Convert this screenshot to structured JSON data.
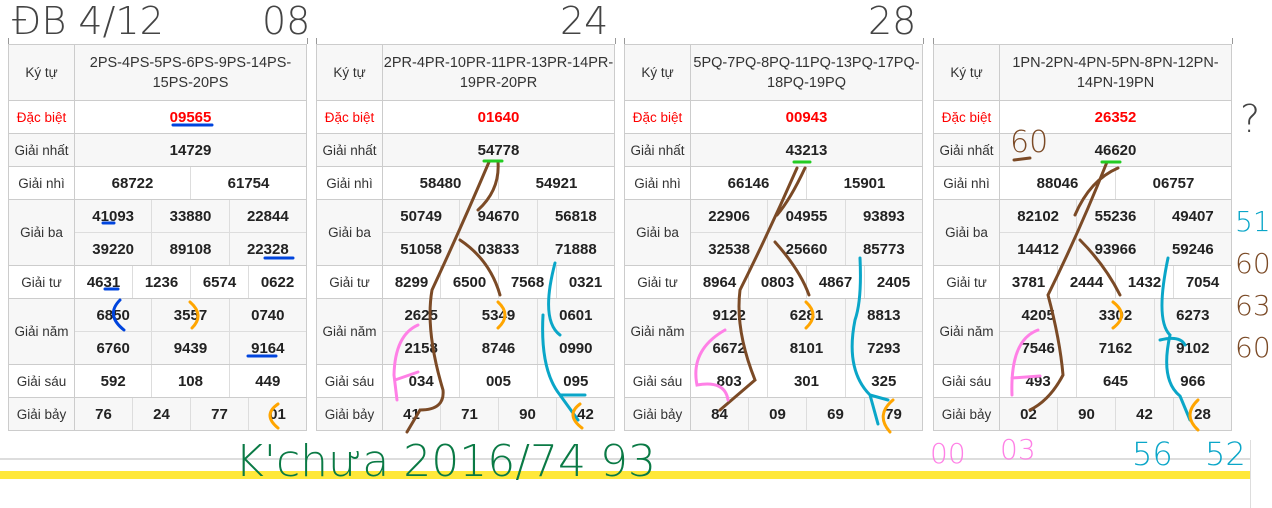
{
  "labels": {
    "ky_tu": "Ký tự",
    "dac_biet": "Đặc biệt",
    "nhat": "Giải nhất",
    "nhi": "Giải nhì",
    "ba": "Giải ba",
    "tu": "Giải tư",
    "nam": "Giải năm",
    "sau": "Giải sáu",
    "bay": "Giải bảy"
  },
  "tables": [
    {
      "ky_tu": "2PS-4PS-5PS-6PS-9PS-14PS-15PS-20PS",
      "dac_biet": "09565",
      "nhat": "14729",
      "nhi": [
        "68722",
        "61754"
      ],
      "ba": [
        "41093",
        "33880",
        "22844",
        "39220",
        "89108",
        "22328"
      ],
      "tu": [
        "4631",
        "1236",
        "6574",
        "0622"
      ],
      "nam": [
        "6850",
        "3557",
        "0740",
        "6760",
        "9439",
        "9164"
      ],
      "sau": [
        "592",
        "108",
        "449"
      ],
      "bay": [
        "76",
        "24",
        "77",
        "01"
      ]
    },
    {
      "ky_tu": "2PR-4PR-10PR-11PR-13PR-14PR-19PR-20PR",
      "dac_biet": "01640",
      "nhat": "54778",
      "nhi": [
        "58480",
        "54921"
      ],
      "ba": [
        "50749",
        "94670",
        "56818",
        "51058",
        "03833",
        "71888"
      ],
      "tu": [
        "8299",
        "6500",
        "7568",
        "0321"
      ],
      "nam": [
        "2625",
        "5349",
        "0601",
        "2158",
        "8746",
        "0990"
      ],
      "sau": [
        "034",
        "005",
        "095"
      ],
      "bay": [
        "41",
        "71",
        "90",
        "42"
      ]
    },
    {
      "ky_tu": "5PQ-7PQ-8PQ-11PQ-13PQ-17PQ-18PQ-19PQ",
      "dac_biet": "00943",
      "nhat": "43213",
      "nhi": [
        "66146",
        "15901"
      ],
      "ba": [
        "22906",
        "04955",
        "93893",
        "32538",
        "25660",
        "85773"
      ],
      "tu": [
        "8964",
        "0803",
        "4867",
        "2405"
      ],
      "nam": [
        "9122",
        "6281",
        "8813",
        "6672",
        "8101",
        "7293"
      ],
      "sau": [
        "803",
        "301",
        "325"
      ],
      "bay": [
        "84",
        "09",
        "69",
        "79"
      ]
    },
    {
      "ky_tu": "1PN-2PN-4PN-5PN-8PN-12PN-14PN-19PN",
      "dac_biet": "26352",
      "nhat": "46620",
      "nhi": [
        "88046",
        "06757"
      ],
      "ba": [
        "82102",
        "55236",
        "49407",
        "14412",
        "93966",
        "59246"
      ],
      "tu": [
        "3781",
        "2444",
        "1432",
        "7054"
      ],
      "nam": [
        "4205",
        "3302",
        "6273",
        "7546",
        "7162",
        "9102"
      ],
      "sau": [
        "493",
        "645",
        "966"
      ],
      "bay": [
        "02",
        "90",
        "42",
        "28"
      ]
    }
  ],
  "annotations": {
    "date": "ĐB 4/12",
    "t1": "08",
    "t2": "24",
    "t3": "28",
    "t4": "?",
    "n60a": "60",
    "n60b": "60",
    "n63": "63",
    "n60c": "60",
    "n51": "51",
    "bottom": "K'chưa 2016/74 93",
    "pink1": "00",
    "pink2": "03",
    "blue1": "56",
    "blue2": "52"
  },
  "colors": {
    "special": "#ff0000",
    "highlight_bar": "#ffe83a",
    "ink_brown": "#7b4a26",
    "ink_blue": "#0aa6c8",
    "ink_pink": "#ff80e6",
    "ink_orange": "#ffa500",
    "ink_green": "#0a7a45",
    "ink_gray": "#444444"
  }
}
